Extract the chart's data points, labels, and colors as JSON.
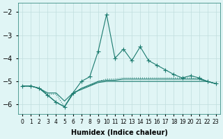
{
  "xlabel": "Humidex (Indice chaleur)",
  "x": [
    0,
    1,
    2,
    3,
    4,
    5,
    6,
    7,
    8,
    9,
    10,
    11,
    12,
    13,
    14,
    15,
    16,
    17,
    18,
    19,
    20,
    21,
    22,
    23
  ],
  "line1": [
    -5.2,
    -5.2,
    -5.3,
    -5.6,
    -5.9,
    -6.1,
    -5.5,
    -5.0,
    -4.8,
    -3.7,
    -2.1,
    -4.0,
    -3.6,
    -4.1,
    -3.5,
    -4.1,
    -4.3,
    -4.5,
    -4.7,
    -4.85,
    -4.75,
    -4.85,
    -5.0,
    -5.1
  ],
  "line2": [
    -5.2,
    -5.2,
    -5.3,
    -5.55,
    -5.55,
    -6.1,
    -5.5,
    -5.3,
    -5.2,
    -5.0,
    -4.9,
    -4.9,
    -4.85,
    -4.85,
    -4.85,
    -4.85,
    -4.85,
    -4.85,
    -4.85,
    -4.85,
    -4.85,
    -4.9,
    -5.0,
    -5.1
  ],
  "line3": [
    -5.2,
    -5.2,
    -5.3,
    -5.6,
    -5.9,
    -6.1,
    -5.55,
    -5.3,
    -5.15,
    -5.0,
    -4.95,
    -4.95,
    -4.9,
    -4.9,
    -4.9,
    -4.9,
    -4.9,
    -4.9,
    -4.9,
    -4.9,
    -4.9,
    -4.9,
    -5.0,
    -5.1
  ],
  "line4": [
    -5.2,
    -5.2,
    -5.3,
    -5.5,
    -5.5,
    -5.85,
    -5.5,
    -5.35,
    -5.2,
    -5.05,
    -5.0,
    -5.0,
    -5.0,
    -5.0,
    -5.0,
    -5.0,
    -5.0,
    -5.0,
    -5.0,
    -5.0,
    -5.0,
    -5.0,
    -5.0,
    -5.1
  ],
  "line_color": "#1a7a6e",
  "bg_color": "#e0f5f5",
  "grid_color": "#c0dede",
  "ylim": [
    -6.4,
    -1.6
  ],
  "yticks": [
    -6,
    -5,
    -4,
    -3,
    -2
  ],
  "xlim": [
    -0.5,
    23.5
  ]
}
